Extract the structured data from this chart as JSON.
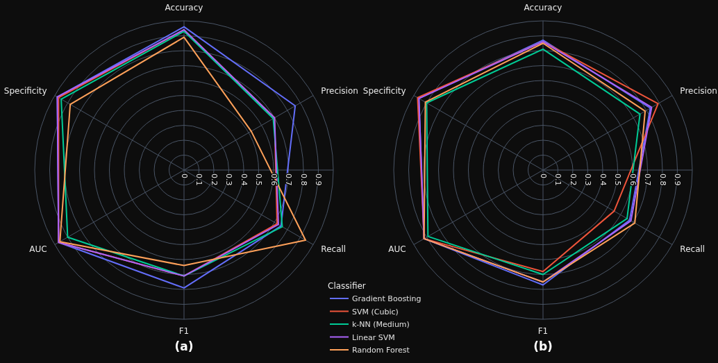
{
  "chart_data": [
    {
      "type": "radar",
      "title": "(a)",
      "legend_title": "Classifier",
      "legend": "bottom right",
      "grid": true,
      "categories": [
        "Accuracy",
        "Precision",
        "Recall",
        "F1",
        "AUC",
        "Specificity"
      ],
      "ylim": [
        0,
        1
      ],
      "yticks": [
        0,
        0.1,
        0.2,
        0.3,
        0.4,
        0.5,
        0.6,
        0.7,
        0.8,
        0.9
      ],
      "series": [
        {
          "name": "Gradient Boosting",
          "color": "#636efa",
          "values": [
            0.96,
            0.86,
            0.75,
            0.79,
            0.97,
            0.98
          ]
        },
        {
          "name": "SVM (Cubic)",
          "color": "#ef553b",
          "values": [
            0.94,
            0.7,
            0.72,
            0.71,
            0.97,
            0.97
          ]
        },
        {
          "name": "k-NN (Medium)",
          "color": "#00cc96",
          "values": [
            0.93,
            0.69,
            0.76,
            0.71,
            0.9,
            0.95
          ]
        },
        {
          "name": "Linear SVM",
          "color": "#ab63fa",
          "values": [
            0.94,
            0.7,
            0.73,
            0.71,
            0.97,
            0.98
          ]
        },
        {
          "name": "Random Forest",
          "color": "#ffa15a",
          "values": [
            0.89,
            0.52,
            0.94,
            0.64,
            0.96,
            0.88
          ]
        }
      ]
    },
    {
      "type": "radar",
      "title": "(b)",
      "grid": true,
      "categories": [
        "Accuracy",
        "Precision",
        "Recall",
        "F1",
        "AUC",
        "Specificity"
      ],
      "ylim": [
        0,
        1
      ],
      "yticks": [
        0,
        0.1,
        0.2,
        0.3,
        0.4,
        0.5,
        0.6,
        0.7,
        0.8,
        0.9
      ],
      "series": [
        {
          "color": "#636efa",
          "values": [
            0.87,
            0.83,
            0.67,
            0.77,
            0.92,
            0.96
          ]
        },
        {
          "color": "#ef553b",
          "values": [
            0.86,
            0.89,
            0.55,
            0.68,
            0.92,
            0.97
          ]
        },
        {
          "color": "#00cc96",
          "values": [
            0.81,
            0.75,
            0.65,
            0.7,
            0.89,
            0.9
          ]
        },
        {
          "color": "#ab63fa",
          "values": [
            0.86,
            0.84,
            0.68,
            0.75,
            0.92,
            0.96
          ]
        },
        {
          "color": "#ffa15a",
          "values": [
            0.85,
            0.79,
            0.71,
            0.75,
            0.92,
            0.91
          ]
        }
      ]
    }
  ]
}
